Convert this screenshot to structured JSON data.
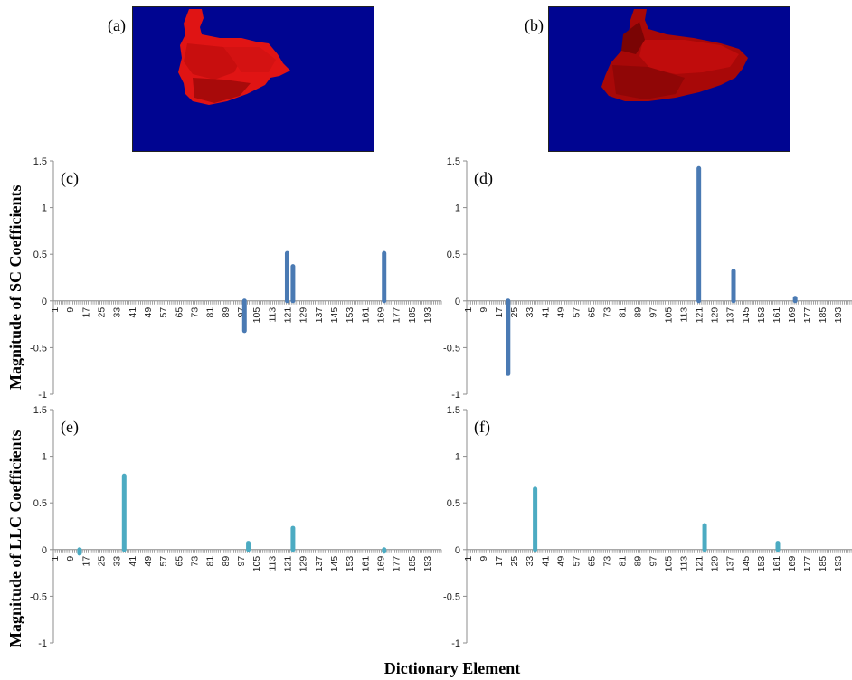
{
  "images": [
    {
      "label": "(a)",
      "blob_color": "#d81010"
    },
    {
      "label": "(b)",
      "blob_color": "#a80808"
    }
  ],
  "background_color": "#000591",
  "colors": {
    "sc": "#4a7ab3",
    "llc": "#4cabc2",
    "axis": "#8c8c8c"
  },
  "ylabels": {
    "sc": "Magnitude of SC Coefficients",
    "llc": "Magnitude of LLC Coefficients"
  },
  "xlabel": "Dictionary Element",
  "chart_data": [
    {
      "panel": "(c)",
      "type": "bar",
      "ylim": [
        -1,
        1.5
      ],
      "yticks": [
        "1.5",
        "1",
        "0.5",
        "0",
        "-0.5",
        "-1"
      ],
      "xticks": [
        1,
        9,
        17,
        25,
        33,
        41,
        49,
        57,
        65,
        73,
        81,
        89,
        97,
        105,
        113,
        121,
        129,
        137,
        145,
        153,
        161,
        169,
        177,
        185,
        193
      ],
      "x": [
        99,
        121,
        124,
        171
      ],
      "values": [
        -0.32,
        0.51,
        0.37,
        0.51
      ]
    },
    {
      "panel": "(d)",
      "type": "bar",
      "ylim": [
        -1,
        1.5
      ],
      "yticks": [
        "1.5",
        "1",
        "0.5",
        "0",
        "-0.5",
        "-1"
      ],
      "xticks": [
        1,
        9,
        17,
        25,
        33,
        41,
        49,
        57,
        65,
        73,
        81,
        89,
        97,
        105,
        113,
        121,
        129,
        137,
        145,
        153,
        161,
        169,
        177,
        185,
        193
      ],
      "x": [
        22,
        121,
        139,
        171
      ],
      "values": [
        -0.78,
        1.42,
        0.32,
        0.03
      ]
    },
    {
      "panel": "(e)",
      "type": "bar",
      "ylim": [
        -1,
        1.5
      ],
      "yticks": [
        "1.5",
        "1",
        "0.5",
        "0",
        "-0.5",
        "-1"
      ],
      "xticks": [
        1,
        9,
        17,
        25,
        33,
        41,
        49,
        57,
        65,
        73,
        81,
        89,
        97,
        105,
        113,
        121,
        129,
        137,
        145,
        153,
        161,
        169,
        177,
        185,
        193
      ],
      "x": [
        14,
        37,
        101,
        124,
        171
      ],
      "values": [
        -0.04,
        0.79,
        0.07,
        0.23,
        -0.02
      ]
    },
    {
      "panel": "(f)",
      "type": "bar",
      "ylim": [
        -1,
        1.5
      ],
      "yticks": [
        "1.5",
        "1",
        "0.5",
        "0",
        "-0.5",
        "-1"
      ],
      "xticks": [
        1,
        9,
        17,
        25,
        33,
        41,
        49,
        57,
        65,
        73,
        81,
        89,
        97,
        105,
        113,
        121,
        129,
        137,
        145,
        153,
        161,
        169,
        177,
        185,
        193
      ],
      "x": [
        36,
        124,
        162
      ],
      "values": [
        0.65,
        0.26,
        0.07
      ]
    }
  ]
}
